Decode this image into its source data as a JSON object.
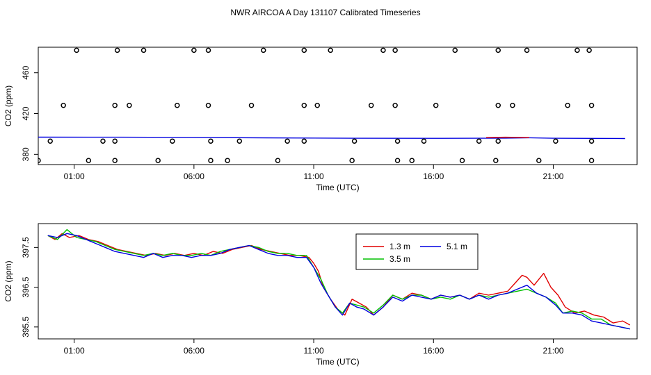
{
  "title": "NWR AIRCOA A  Day 131107  Calibrated Timeseries",
  "colors": {
    "red": "#e00000",
    "green": "#00c000",
    "blue": "#0000e0",
    "axis": "#000000"
  },
  "chart_data": [
    {
      "type": "scatter",
      "xlabel": "Time (UTC)",
      "ylabel": "CO2 (ppm)",
      "xlim": [
        -0.5,
        24.5
      ],
      "ylim": [
        370,
        485
      ],
      "x_ticks": [
        1,
        6,
        11,
        16,
        21
      ],
      "x_tick_labels": [
        "01:00",
        "06:00",
        "11:00",
        "16:00",
        "21:00"
      ],
      "y_ticks": [
        380,
        420,
        460
      ],
      "y_tick_labels": [
        "380",
        "420",
        "460"
      ],
      "points": [
        [
          1.1,
          482
        ],
        [
          2.8,
          482
        ],
        [
          3.9,
          482
        ],
        [
          6.0,
          482
        ],
        [
          6.6,
          482
        ],
        [
          8.9,
          482
        ],
        [
          10.6,
          482
        ],
        [
          11.7,
          482
        ],
        [
          13.9,
          482
        ],
        [
          14.4,
          482
        ],
        [
          16.9,
          482
        ],
        [
          18.7,
          482
        ],
        [
          19.9,
          482
        ],
        [
          22.0,
          482
        ],
        [
          22.5,
          482
        ],
        [
          0.55,
          428
        ],
        [
          2.7,
          428
        ],
        [
          3.3,
          428
        ],
        [
          5.3,
          428
        ],
        [
          6.6,
          428
        ],
        [
          8.4,
          428
        ],
        [
          10.6,
          428
        ],
        [
          11.15,
          428
        ],
        [
          13.4,
          428
        ],
        [
          14.4,
          428
        ],
        [
          16.1,
          428
        ],
        [
          18.7,
          428
        ],
        [
          19.3,
          428
        ],
        [
          21.6,
          428
        ],
        [
          22.6,
          428
        ],
        [
          0,
          393
        ],
        [
          2.2,
          393
        ],
        [
          2.7,
          393
        ],
        [
          5.1,
          393
        ],
        [
          6.7,
          393
        ],
        [
          7.9,
          393
        ],
        [
          9.9,
          393
        ],
        [
          10.6,
          393
        ],
        [
          12.7,
          393
        ],
        [
          14.5,
          393
        ],
        [
          15.6,
          393
        ],
        [
          17.9,
          393
        ],
        [
          18.7,
          393
        ],
        [
          21.1,
          393
        ],
        [
          22.6,
          393
        ],
        [
          -0.5,
          374
        ],
        [
          1.6,
          374
        ],
        [
          2.7,
          374
        ],
        [
          4.5,
          374
        ],
        [
          6.7,
          374
        ],
        [
          7.4,
          374
        ],
        [
          9.5,
          374
        ],
        [
          12.6,
          374
        ],
        [
          14.5,
          374
        ],
        [
          15.1,
          374
        ],
        [
          17.2,
          374
        ],
        [
          18.6,
          374
        ],
        [
          20.4,
          374
        ],
        [
          22.6,
          374
        ]
      ],
      "series": [
        {
          "color": "blue",
          "values": [
            [
              -0.5,
              396.9
            ],
            [
              3,
              396.8
            ],
            [
              6,
              396.6
            ],
            [
              9,
              396.2
            ],
            [
              11,
              396.0
            ],
            [
              13,
              395.8
            ],
            [
              16,
              395.7
            ],
            [
              19,
              395.9
            ],
            [
              20,
              396.3
            ],
            [
              21,
              395.8
            ],
            [
              24,
              395.5
            ]
          ]
        },
        {
          "color": "red",
          "values": [
            [
              18.2,
              396.5
            ],
            [
              19.0,
              396.8
            ],
            [
              20.0,
              396.5
            ]
          ]
        }
      ]
    },
    {
      "type": "line",
      "xlabel": "Time (UTC)",
      "ylabel": "CO2 (ppm)",
      "xlim": [
        -0.5,
        24.5
      ],
      "ylim": [
        395.2,
        398.1
      ],
      "x_ticks": [
        1,
        6,
        11,
        16,
        21
      ],
      "x_tick_labels": [
        "01:00",
        "06:00",
        "11:00",
        "16:00",
        "21:00"
      ],
      "y_ticks": [
        395.5,
        396.5,
        397.5
      ],
      "y_tick_labels": [
        "395.5",
        "396.5",
        "397.5"
      ],
      "legend": {
        "placement": "top-center",
        "entries": [
          {
            "label": "1.3 m",
            "color": "red"
          },
          {
            "label": "5.1 m",
            "color": "blue"
          },
          {
            "label": "3.5 m",
            "color": "green"
          }
        ]
      },
      "series": [
        {
          "name": "1.3 m",
          "color": "red",
          "values": [
            [
              -0.1,
              397.8
            ],
            [
              0.2,
              397.7
            ],
            [
              0.5,
              397.85
            ],
            [
              0.8,
              397.75
            ],
            [
              1.2,
              397.8
            ],
            [
              1.6,
              397.7
            ],
            [
              2.0,
              397.65
            ],
            [
              2.4,
              397.55
            ],
            [
              2.8,
              397.45
            ],
            [
              3.2,
              397.4
            ],
            [
              3.6,
              397.35
            ],
            [
              4.0,
              397.3
            ],
            [
              4.4,
              397.35
            ],
            [
              4.8,
              397.3
            ],
            [
              5.2,
              397.35
            ],
            [
              5.6,
              397.3
            ],
            [
              6.0,
              397.35
            ],
            [
              6.4,
              397.3
            ],
            [
              6.8,
              397.4
            ],
            [
              7.2,
              397.35
            ],
            [
              7.6,
              397.45
            ],
            [
              8.0,
              397.5
            ],
            [
              8.4,
              397.55
            ],
            [
              8.8,
              397.45
            ],
            [
              9.2,
              397.4
            ],
            [
              9.6,
              397.35
            ],
            [
              10.0,
              397.3
            ],
            [
              10.4,
              397.3
            ],
            [
              10.8,
              397.25
            ],
            [
              11.0,
              397.1
            ],
            [
              11.2,
              396.9
            ],
            [
              11.4,
              396.5
            ],
            [
              11.7,
              396.2
            ],
            [
              12.0,
              395.95
            ],
            [
              12.3,
              395.8
            ],
            [
              12.6,
              396.2
            ],
            [
              12.9,
              396.1
            ],
            [
              13.2,
              396.0
            ],
            [
              13.5,
              395.8
            ],
            [
              13.9,
              396.0
            ],
            [
              14.3,
              396.3
            ],
            [
              14.7,
              396.2
            ],
            [
              15.1,
              396.35
            ],
            [
              15.5,
              396.3
            ],
            [
              15.9,
              396.2
            ],
            [
              16.3,
              396.3
            ],
            [
              16.7,
              396.25
            ],
            [
              17.1,
              396.3
            ],
            [
              17.5,
              396.2
            ],
            [
              17.9,
              396.35
            ],
            [
              18.3,
              396.3
            ],
            [
              18.7,
              396.35
            ],
            [
              19.1,
              396.4
            ],
            [
              19.4,
              396.6
            ],
            [
              19.7,
              396.8
            ],
            [
              19.9,
              396.75
            ],
            [
              20.2,
              396.55
            ],
            [
              20.6,
              396.85
            ],
            [
              20.9,
              396.5
            ],
            [
              21.2,
              396.3
            ],
            [
              21.5,
              396.0
            ],
            [
              21.9,
              395.85
            ],
            [
              22.3,
              395.9
            ],
            [
              22.7,
              395.8
            ],
            [
              23.1,
              395.75
            ],
            [
              23.5,
              395.6
            ],
            [
              23.9,
              395.65
            ],
            [
              24.2,
              395.55
            ]
          ]
        },
        {
          "name": "3.5 m",
          "color": "green",
          "values": [
            [
              -0.1,
              397.8
            ],
            [
              0.3,
              397.7
            ],
            [
              0.7,
              397.95
            ],
            [
              1.1,
              397.75
            ],
            [
              1.5,
              397.7
            ],
            [
              1.9,
              397.65
            ],
            [
              2.3,
              397.55
            ],
            [
              2.7,
              397.45
            ],
            [
              3.1,
              397.4
            ],
            [
              3.5,
              397.35
            ],
            [
              3.9,
              397.3
            ],
            [
              4.3,
              397.35
            ],
            [
              4.7,
              397.3
            ],
            [
              5.1,
              397.35
            ],
            [
              5.5,
              397.3
            ],
            [
              5.9,
              397.3
            ],
            [
              6.3,
              397.35
            ],
            [
              6.7,
              397.3
            ],
            [
              7.1,
              397.4
            ],
            [
              7.5,
              397.45
            ],
            [
              7.9,
              397.5
            ],
            [
              8.3,
              397.55
            ],
            [
              8.7,
              397.5
            ],
            [
              9.1,
              397.4
            ],
            [
              9.5,
              397.35
            ],
            [
              9.9,
              397.35
            ],
            [
              10.3,
              397.3
            ],
            [
              10.7,
              397.3
            ],
            [
              11.0,
              397.0
            ],
            [
              11.3,
              396.7
            ],
            [
              11.6,
              396.3
            ],
            [
              11.9,
              396.0
            ],
            [
              12.2,
              395.85
            ],
            [
              12.5,
              396.1
            ],
            [
              12.8,
              396.05
            ],
            [
              13.1,
              396.0
            ],
            [
              13.5,
              395.85
            ],
            [
              13.9,
              396.05
            ],
            [
              14.3,
              396.3
            ],
            [
              14.7,
              396.2
            ],
            [
              15.1,
              396.3
            ],
            [
              15.5,
              396.3
            ],
            [
              15.9,
              396.2
            ],
            [
              16.3,
              396.25
            ],
            [
              16.7,
              396.2
            ],
            [
              17.1,
              396.3
            ],
            [
              17.5,
              396.2
            ],
            [
              17.9,
              396.3
            ],
            [
              18.3,
              396.25
            ],
            [
              18.7,
              396.3
            ],
            [
              19.1,
              396.35
            ],
            [
              19.5,
              396.4
            ],
            [
              19.9,
              396.45
            ],
            [
              20.3,
              396.35
            ],
            [
              20.7,
              396.25
            ],
            [
              21.1,
              396.1
            ],
            [
              21.4,
              395.85
            ],
            [
              21.8,
              395.9
            ],
            [
              22.2,
              395.85
            ],
            [
              22.6,
              395.7
            ],
            [
              23.0,
              395.7
            ],
            [
              23.4,
              395.55
            ],
            [
              23.8,
              395.5
            ],
            [
              24.2,
              395.45
            ]
          ]
        },
        {
          "name": "5.1 m",
          "color": "blue",
          "values": [
            [
              -0.1,
              397.8
            ],
            [
              0.3,
              397.75
            ],
            [
              0.7,
              397.85
            ],
            [
              1.1,
              397.8
            ],
            [
              1.5,
              397.7
            ],
            [
              1.9,
              397.6
            ],
            [
              2.3,
              397.5
            ],
            [
              2.7,
              397.4
            ],
            [
              3.1,
              397.35
            ],
            [
              3.5,
              397.3
            ],
            [
              3.9,
              397.25
            ],
            [
              4.3,
              397.35
            ],
            [
              4.7,
              397.25
            ],
            [
              5.1,
              397.3
            ],
            [
              5.5,
              397.3
            ],
            [
              5.9,
              397.25
            ],
            [
              6.3,
              397.3
            ],
            [
              6.7,
              397.3
            ],
            [
              7.1,
              397.35
            ],
            [
              7.5,
              397.45
            ],
            [
              7.9,
              397.5
            ],
            [
              8.3,
              397.55
            ],
            [
              8.7,
              397.45
            ],
            [
              9.1,
              397.35
            ],
            [
              9.5,
              397.3
            ],
            [
              9.9,
              397.3
            ],
            [
              10.3,
              397.25
            ],
            [
              10.7,
              397.25
            ],
            [
              11.0,
              397.0
            ],
            [
              11.3,
              396.6
            ],
            [
              11.6,
              396.3
            ],
            [
              11.9,
              396.0
            ],
            [
              12.2,
              395.8
            ],
            [
              12.5,
              396.1
            ],
            [
              12.8,
              396.0
            ],
            [
              13.1,
              395.95
            ],
            [
              13.5,
              395.8
            ],
            [
              13.9,
              396.0
            ],
            [
              14.3,
              396.25
            ],
            [
              14.7,
              396.15
            ],
            [
              15.1,
              396.3
            ],
            [
              15.5,
              396.25
            ],
            [
              15.9,
              396.2
            ],
            [
              16.3,
              396.3
            ],
            [
              16.7,
              396.25
            ],
            [
              17.1,
              396.3
            ],
            [
              17.5,
              396.2
            ],
            [
              17.9,
              396.3
            ],
            [
              18.3,
              396.2
            ],
            [
              18.7,
              396.3
            ],
            [
              19.1,
              396.35
            ],
            [
              19.5,
              396.45
            ],
            [
              19.9,
              396.55
            ],
            [
              20.3,
              396.35
            ],
            [
              20.7,
              396.25
            ],
            [
              21.1,
              396.05
            ],
            [
              21.4,
              395.85
            ],
            [
              21.8,
              395.85
            ],
            [
              22.2,
              395.8
            ],
            [
              22.6,
              395.65
            ],
            [
              23.0,
              395.6
            ],
            [
              23.4,
              395.55
            ],
            [
              23.8,
              395.5
            ],
            [
              24.2,
              395.45
            ]
          ]
        }
      ]
    }
  ]
}
